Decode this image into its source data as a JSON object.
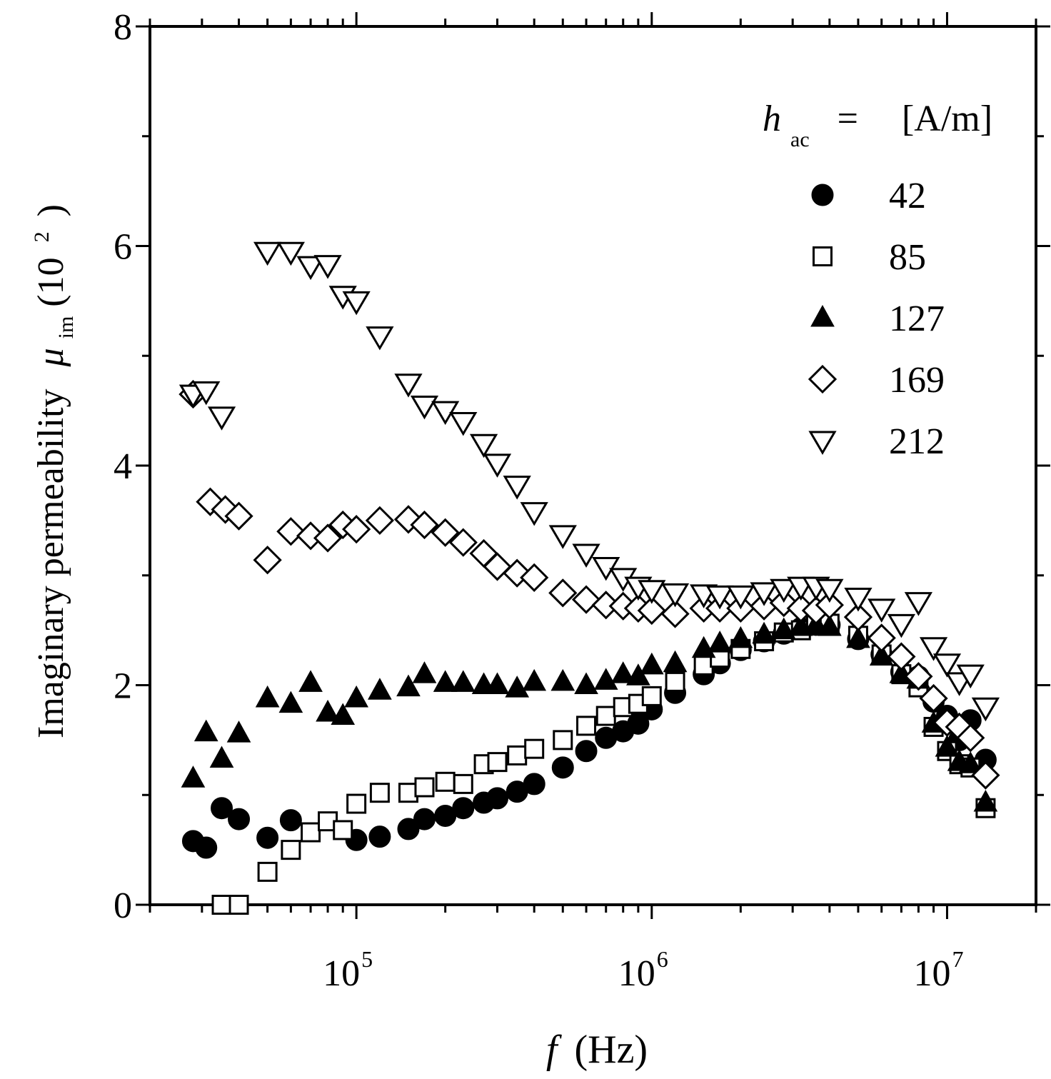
{
  "chart_data": {
    "type": "scatter",
    "x_scale": "log",
    "xlim": [
      20000,
      20000000
    ],
    "ylim": [
      0,
      8
    ],
    "xlabel": {
      "symbol": "f",
      "unit": "(Hz)"
    },
    "ylabel": {
      "text": "Imaginary permeability",
      "symbol": "μ",
      "subscript": "im",
      "scale": "(10",
      "scale_exp": "2",
      "close": ")"
    },
    "x_ticks": [
      {
        "value": 100000,
        "base": "10",
        "exp": "5"
      },
      {
        "value": 1000000,
        "base": "10",
        "exp": "6"
      },
      {
        "value": 10000000,
        "base": "10",
        "exp": "7"
      }
    ],
    "y_ticks": [
      {
        "value": 0,
        "label": "0"
      },
      {
        "value": 2,
        "label": "2"
      },
      {
        "value": 4,
        "label": "4"
      },
      {
        "value": 6,
        "label": "6"
      },
      {
        "value": 8,
        "label": "8"
      }
    ],
    "legend": {
      "position": "top-right",
      "header": {
        "symbol": "h",
        "subscript": "ac",
        "equals": "=",
        "unit": "[A/m]"
      }
    },
    "series": [
      {
        "name": "42",
        "marker": "circle-filled",
        "points": [
          [
            28000,
            0.58
          ],
          [
            31000,
            0.52
          ],
          [
            35000,
            0.88
          ],
          [
            40000,
            0.78
          ],
          [
            50000,
            0.61
          ],
          [
            60000,
            0.77
          ],
          [
            100000,
            0.59
          ],
          [
            120000,
            0.62
          ],
          [
            150000,
            0.69
          ],
          [
            170000,
            0.78
          ],
          [
            200000,
            0.81
          ],
          [
            230000,
            0.88
          ],
          [
            270000,
            0.93
          ],
          [
            300000,
            0.97
          ],
          [
            350000,
            1.03
          ],
          [
            400000,
            1.1
          ],
          [
            500000,
            1.25
          ],
          [
            600000,
            1.4
          ],
          [
            700000,
            1.52
          ],
          [
            800000,
            1.58
          ],
          [
            900000,
            1.65
          ],
          [
            1000000,
            1.78
          ],
          [
            1200000,
            1.93
          ],
          [
            1500000,
            2.1
          ],
          [
            1700000,
            2.2
          ],
          [
            2000000,
            2.32
          ],
          [
            2400000,
            2.4
          ],
          [
            2800000,
            2.47
          ],
          [
            3200000,
            2.52
          ],
          [
            3600000,
            2.55
          ],
          [
            4000000,
            2.55
          ],
          [
            5000000,
            2.42
          ],
          [
            6000000,
            2.28
          ],
          [
            7000000,
            2.12
          ],
          [
            8000000,
            2.08
          ],
          [
            9000000,
            1.85
          ],
          [
            10000000,
            1.72
          ],
          [
            11000000,
            1.5
          ],
          [
            12000000,
            1.68
          ],
          [
            13500000,
            1.32
          ]
        ]
      },
      {
        "name": "85",
        "marker": "square-open",
        "points": [
          [
            35000,
            0.0
          ],
          [
            40000,
            0.0
          ],
          [
            50000,
            0.3
          ],
          [
            60000,
            0.5
          ],
          [
            70000,
            0.66
          ],
          [
            80000,
            0.76
          ],
          [
            90000,
            0.68
          ],
          [
            100000,
            0.92
          ],
          [
            120000,
            1.02
          ],
          [
            150000,
            1.02
          ],
          [
            170000,
            1.07
          ],
          [
            200000,
            1.12
          ],
          [
            230000,
            1.1
          ],
          [
            270000,
            1.28
          ],
          [
            300000,
            1.3
          ],
          [
            350000,
            1.36
          ],
          [
            400000,
            1.42
          ],
          [
            500000,
            1.5
          ],
          [
            600000,
            1.63
          ],
          [
            700000,
            1.72
          ],
          [
            800000,
            1.8
          ],
          [
            900000,
            1.83
          ],
          [
            1000000,
            1.9
          ],
          [
            1200000,
            2.03
          ],
          [
            1500000,
            2.18
          ],
          [
            1700000,
            2.25
          ],
          [
            2000000,
            2.33
          ],
          [
            2400000,
            2.4
          ],
          [
            2800000,
            2.48
          ],
          [
            3200000,
            2.5
          ],
          [
            3600000,
            2.55
          ],
          [
            4000000,
            2.56
          ],
          [
            5000000,
            2.45
          ],
          [
            6000000,
            2.28
          ],
          [
            7000000,
            2.1
          ],
          [
            8000000,
            1.98
          ],
          [
            9000000,
            1.62
          ],
          [
            10000000,
            1.4
          ],
          [
            11000000,
            1.28
          ],
          [
            12000000,
            1.25
          ],
          [
            13500000,
            0.88
          ]
        ]
      },
      {
        "name": "127",
        "marker": "triangle-up-filled",
        "points": [
          [
            28000,
            1.15
          ],
          [
            31000,
            1.57
          ],
          [
            35000,
            1.33
          ],
          [
            40000,
            1.56
          ],
          [
            50000,
            1.88
          ],
          [
            60000,
            1.83
          ],
          [
            70000,
            2.02
          ],
          [
            80000,
            1.75
          ],
          [
            90000,
            1.72
          ],
          [
            100000,
            1.88
          ],
          [
            120000,
            1.95
          ],
          [
            150000,
            1.98
          ],
          [
            170000,
            2.1
          ],
          [
            200000,
            2.02
          ],
          [
            230000,
            2.02
          ],
          [
            270000,
            2.0
          ],
          [
            300000,
            2.0
          ],
          [
            350000,
            1.97
          ],
          [
            400000,
            2.03
          ],
          [
            500000,
            2.03
          ],
          [
            600000,
            2.0
          ],
          [
            700000,
            2.04
          ],
          [
            800000,
            2.1
          ],
          [
            900000,
            2.08
          ],
          [
            1000000,
            2.18
          ],
          [
            1200000,
            2.2
          ],
          [
            1500000,
            2.33
          ],
          [
            1700000,
            2.38
          ],
          [
            2000000,
            2.42
          ],
          [
            2400000,
            2.46
          ],
          [
            2800000,
            2.5
          ],
          [
            3200000,
            2.53
          ],
          [
            3600000,
            2.55
          ],
          [
            4000000,
            2.53
          ],
          [
            5000000,
            2.42
          ],
          [
            6000000,
            2.26
          ],
          [
            7000000,
            2.1
          ],
          [
            8000000,
            2.05
          ],
          [
            9000000,
            1.65
          ],
          [
            10000000,
            1.43
          ],
          [
            11000000,
            1.3
          ],
          [
            12000000,
            1.28
          ],
          [
            13500000,
            0.93
          ]
        ]
      },
      {
        "name": "169",
        "marker": "diamond-open",
        "points": [
          [
            28000,
            4.65
          ],
          [
            32000,
            3.67
          ],
          [
            36000,
            3.6
          ],
          [
            40000,
            3.54
          ],
          [
            50000,
            3.14
          ],
          [
            60000,
            3.4
          ],
          [
            70000,
            3.36
          ],
          [
            80000,
            3.34
          ],
          [
            90000,
            3.46
          ],
          [
            100000,
            3.42
          ],
          [
            120000,
            3.5
          ],
          [
            150000,
            3.51
          ],
          [
            170000,
            3.46
          ],
          [
            200000,
            3.39
          ],
          [
            230000,
            3.3
          ],
          [
            270000,
            3.2
          ],
          [
            300000,
            3.08
          ],
          [
            350000,
            3.02
          ],
          [
            400000,
            2.98
          ],
          [
            500000,
            2.84
          ],
          [
            600000,
            2.78
          ],
          [
            700000,
            2.73
          ],
          [
            800000,
            2.72
          ],
          [
            900000,
            2.7
          ],
          [
            1000000,
            2.68
          ],
          [
            1200000,
            2.65
          ],
          [
            1500000,
            2.7
          ],
          [
            1700000,
            2.7
          ],
          [
            2000000,
            2.7
          ],
          [
            2400000,
            2.72
          ],
          [
            2800000,
            2.75
          ],
          [
            3200000,
            2.7
          ],
          [
            3600000,
            2.68
          ],
          [
            4000000,
            2.73
          ],
          [
            5000000,
            2.62
          ],
          [
            6000000,
            2.43
          ],
          [
            7000000,
            2.26
          ],
          [
            8000000,
            2.08
          ],
          [
            9000000,
            1.88
          ],
          [
            10000000,
            1.66
          ],
          [
            11000000,
            1.62
          ],
          [
            12000000,
            1.52
          ],
          [
            13500000,
            1.18
          ]
        ]
      },
      {
        "name": "212",
        "marker": "triangle-down-open",
        "points": [
          [
            28000,
            4.65
          ],
          [
            31000,
            4.68
          ],
          [
            35000,
            4.45
          ],
          [
            50000,
            5.95
          ],
          [
            60000,
            5.95
          ],
          [
            70000,
            5.82
          ],
          [
            80000,
            5.83
          ],
          [
            90000,
            5.55
          ],
          [
            100000,
            5.5
          ],
          [
            120000,
            5.18
          ],
          [
            150000,
            4.75
          ],
          [
            170000,
            4.55
          ],
          [
            200000,
            4.5
          ],
          [
            230000,
            4.4
          ],
          [
            270000,
            4.2
          ],
          [
            300000,
            4.02
          ],
          [
            350000,
            3.82
          ],
          [
            400000,
            3.58
          ],
          [
            500000,
            3.37
          ],
          [
            600000,
            3.2
          ],
          [
            700000,
            3.08
          ],
          [
            800000,
            2.98
          ],
          [
            900000,
            2.9
          ],
          [
            1000000,
            2.87
          ],
          [
            1200000,
            2.84
          ],
          [
            1500000,
            2.83
          ],
          [
            1700000,
            2.82
          ],
          [
            2000000,
            2.82
          ],
          [
            2400000,
            2.85
          ],
          [
            2800000,
            2.88
          ],
          [
            3200000,
            2.9
          ],
          [
            3600000,
            2.9
          ],
          [
            4000000,
            2.88
          ],
          [
            5000000,
            2.8
          ],
          [
            6000000,
            2.7
          ],
          [
            7000000,
            2.56
          ],
          [
            8000000,
            2.76
          ],
          [
            9000000,
            2.35
          ],
          [
            10000000,
            2.2
          ],
          [
            11000000,
            2.03
          ],
          [
            12000000,
            2.1
          ],
          [
            13500000,
            1.8
          ]
        ]
      }
    ]
  }
}
